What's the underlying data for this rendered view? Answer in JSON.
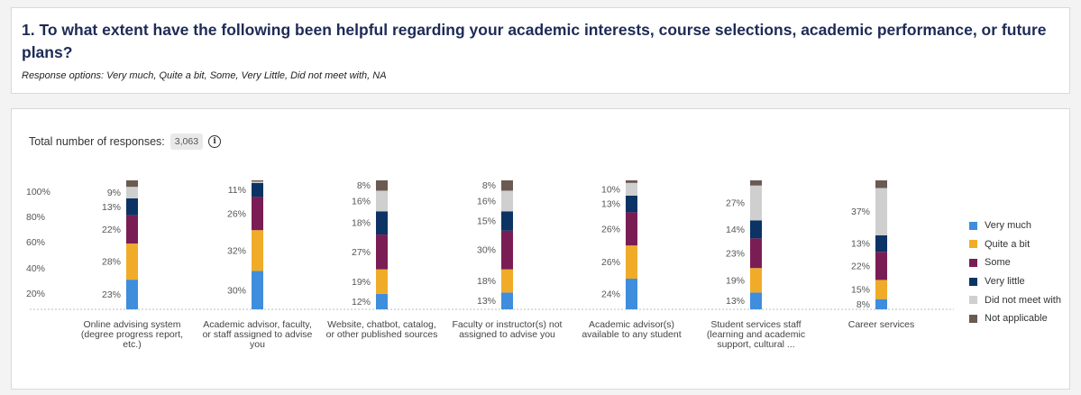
{
  "question": {
    "title": "1. To what extent have the following been helpful regarding your academic interests, course selections, academic performance, or future plans?",
    "subtitle": "Response options: Very much, Quite a bit, Some, Very Little, Did not meet with, NA"
  },
  "total": {
    "label": "Total number of responses:",
    "count": "3,063",
    "icon": "info-icon"
  },
  "chart_data": {
    "type": "bar",
    "stacked": true,
    "y_ticks": [
      "100%",
      "80%",
      "60%",
      "40%",
      "20%"
    ],
    "ylim": [
      0,
      100
    ],
    "legend_position": "right",
    "categories": [
      "Online advising system (degree progress report, etc.)",
      "Academic advisor, faculty, or staff assigned to advise you",
      "Website, chatbot, catalog, or other published sources",
      "Faculty or instructor(s) not assigned to advise you",
      "Academic advisor(s) available to any student",
      "Student services staff (learning and academic support, cultural ...",
      "Career services"
    ],
    "category_lines": [
      [
        "Online advising system",
        "(degree progress report,",
        "etc.)"
      ],
      [
        "Academic advisor, faculty,",
        "or staff assigned to advise",
        "you"
      ],
      [
        "Website, chatbot, catalog,",
        "or other published sources"
      ],
      [
        "Faculty or instructor(s) not",
        "assigned to advise you"
      ],
      [
        "Academic advisor(s)",
        "available to any student"
      ],
      [
        "Student services staff",
        "(learning and academic",
        "support, cultural ..."
      ],
      [
        "Career services"
      ]
    ],
    "series": [
      {
        "name": "Very much",
        "color": "#3f8ddd",
        "values": [
          23,
          30,
          12,
          13,
          24,
          13,
          8
        ]
      },
      {
        "name": "Quite a bit",
        "color": "#f0ac29",
        "values": [
          28,
          32,
          19,
          18,
          26,
          19,
          15
        ]
      },
      {
        "name": "Some",
        "color": "#7b1d55",
        "values": [
          22,
          26,
          27,
          30,
          26,
          23,
          22
        ]
      },
      {
        "name": "Very little",
        "color": "#0b3364",
        "values": [
          13,
          11,
          18,
          15,
          13,
          14,
          13
        ]
      },
      {
        "name": "Did not meet with",
        "color": "#cfcfcf",
        "values": [
          9,
          1,
          16,
          16,
          10,
          27,
          37
        ]
      },
      {
        "name": "Not applicable",
        "color": "#6b5a52",
        "values": [
          5,
          1,
          8,
          8,
          2,
          4,
          6
        ]
      }
    ],
    "labels": [
      [
        "23%",
        "30%",
        "12%",
        "13%",
        "24%",
        "13%",
        "8%"
      ],
      [
        "28%",
        "32%",
        "19%",
        "18%",
        "26%",
        "19%",
        "15%"
      ],
      [
        "22%",
        "26%",
        "27%",
        "30%",
        "26%",
        "23%",
        "22%"
      ],
      [
        "13%",
        "11%",
        "18%",
        "15%",
        "13%",
        "14%",
        "13%"
      ],
      [
        "9%",
        "",
        "16%",
        "16%",
        "10%",
        "27%",
        "37%"
      ],
      [
        "",
        "",
        "8%",
        "8%",
        "",
        "",
        ""
      ]
    ]
  }
}
